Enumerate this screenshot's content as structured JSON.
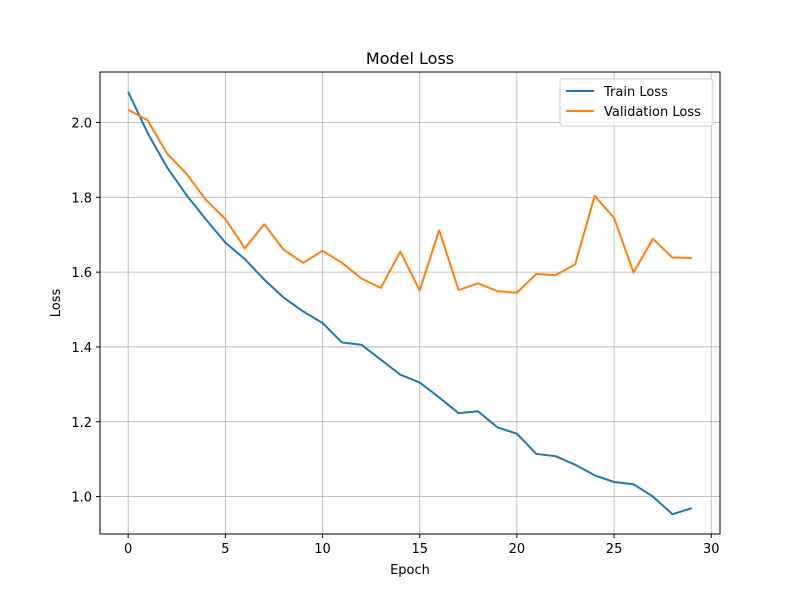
{
  "chart_data": {
    "type": "line",
    "title": "Model Loss",
    "xlabel": "Epoch",
    "ylabel": "Loss",
    "xlim": [
      -1.45,
      30.45
    ],
    "ylim": [
      0.9,
      2.135
    ],
    "xticks": [
      0,
      5,
      10,
      15,
      20,
      25,
      30
    ],
    "yticks": [
      1.0,
      1.2,
      1.4,
      1.6,
      1.8,
      2.0
    ],
    "grid": true,
    "legend_position": "top-right",
    "x": [
      0,
      1,
      2,
      3,
      4,
      5,
      6,
      7,
      8,
      9,
      10,
      11,
      12,
      13,
      14,
      15,
      16,
      17,
      18,
      19,
      20,
      21,
      22,
      23,
      24,
      25,
      26,
      27,
      28,
      29
    ],
    "series": [
      {
        "name": "Train Loss",
        "color": "#1f77b4",
        "values": [
          2.082,
          1.972,
          1.88,
          1.806,
          1.741,
          1.679,
          1.635,
          1.58,
          1.532,
          1.495,
          1.464,
          1.412,
          1.406,
          1.366,
          1.326,
          1.305,
          1.265,
          1.223,
          1.228,
          1.185,
          1.168,
          1.114,
          1.108,
          1.085,
          1.057,
          1.039,
          1.033,
          1.0,
          0.953,
          0.969
        ]
      },
      {
        "name": "Validation Loss",
        "color": "#ff7f0e",
        "values": [
          2.034,
          2.006,
          1.917,
          1.863,
          1.793,
          1.742,
          1.664,
          1.728,
          1.66,
          1.625,
          1.657,
          1.625,
          1.583,
          1.558,
          1.655,
          1.551,
          1.712,
          1.552,
          1.57,
          1.549,
          1.545,
          1.595,
          1.592,
          1.621,
          1.804,
          1.745,
          1.599,
          1.689,
          1.639,
          1.638
        ]
      }
    ]
  }
}
